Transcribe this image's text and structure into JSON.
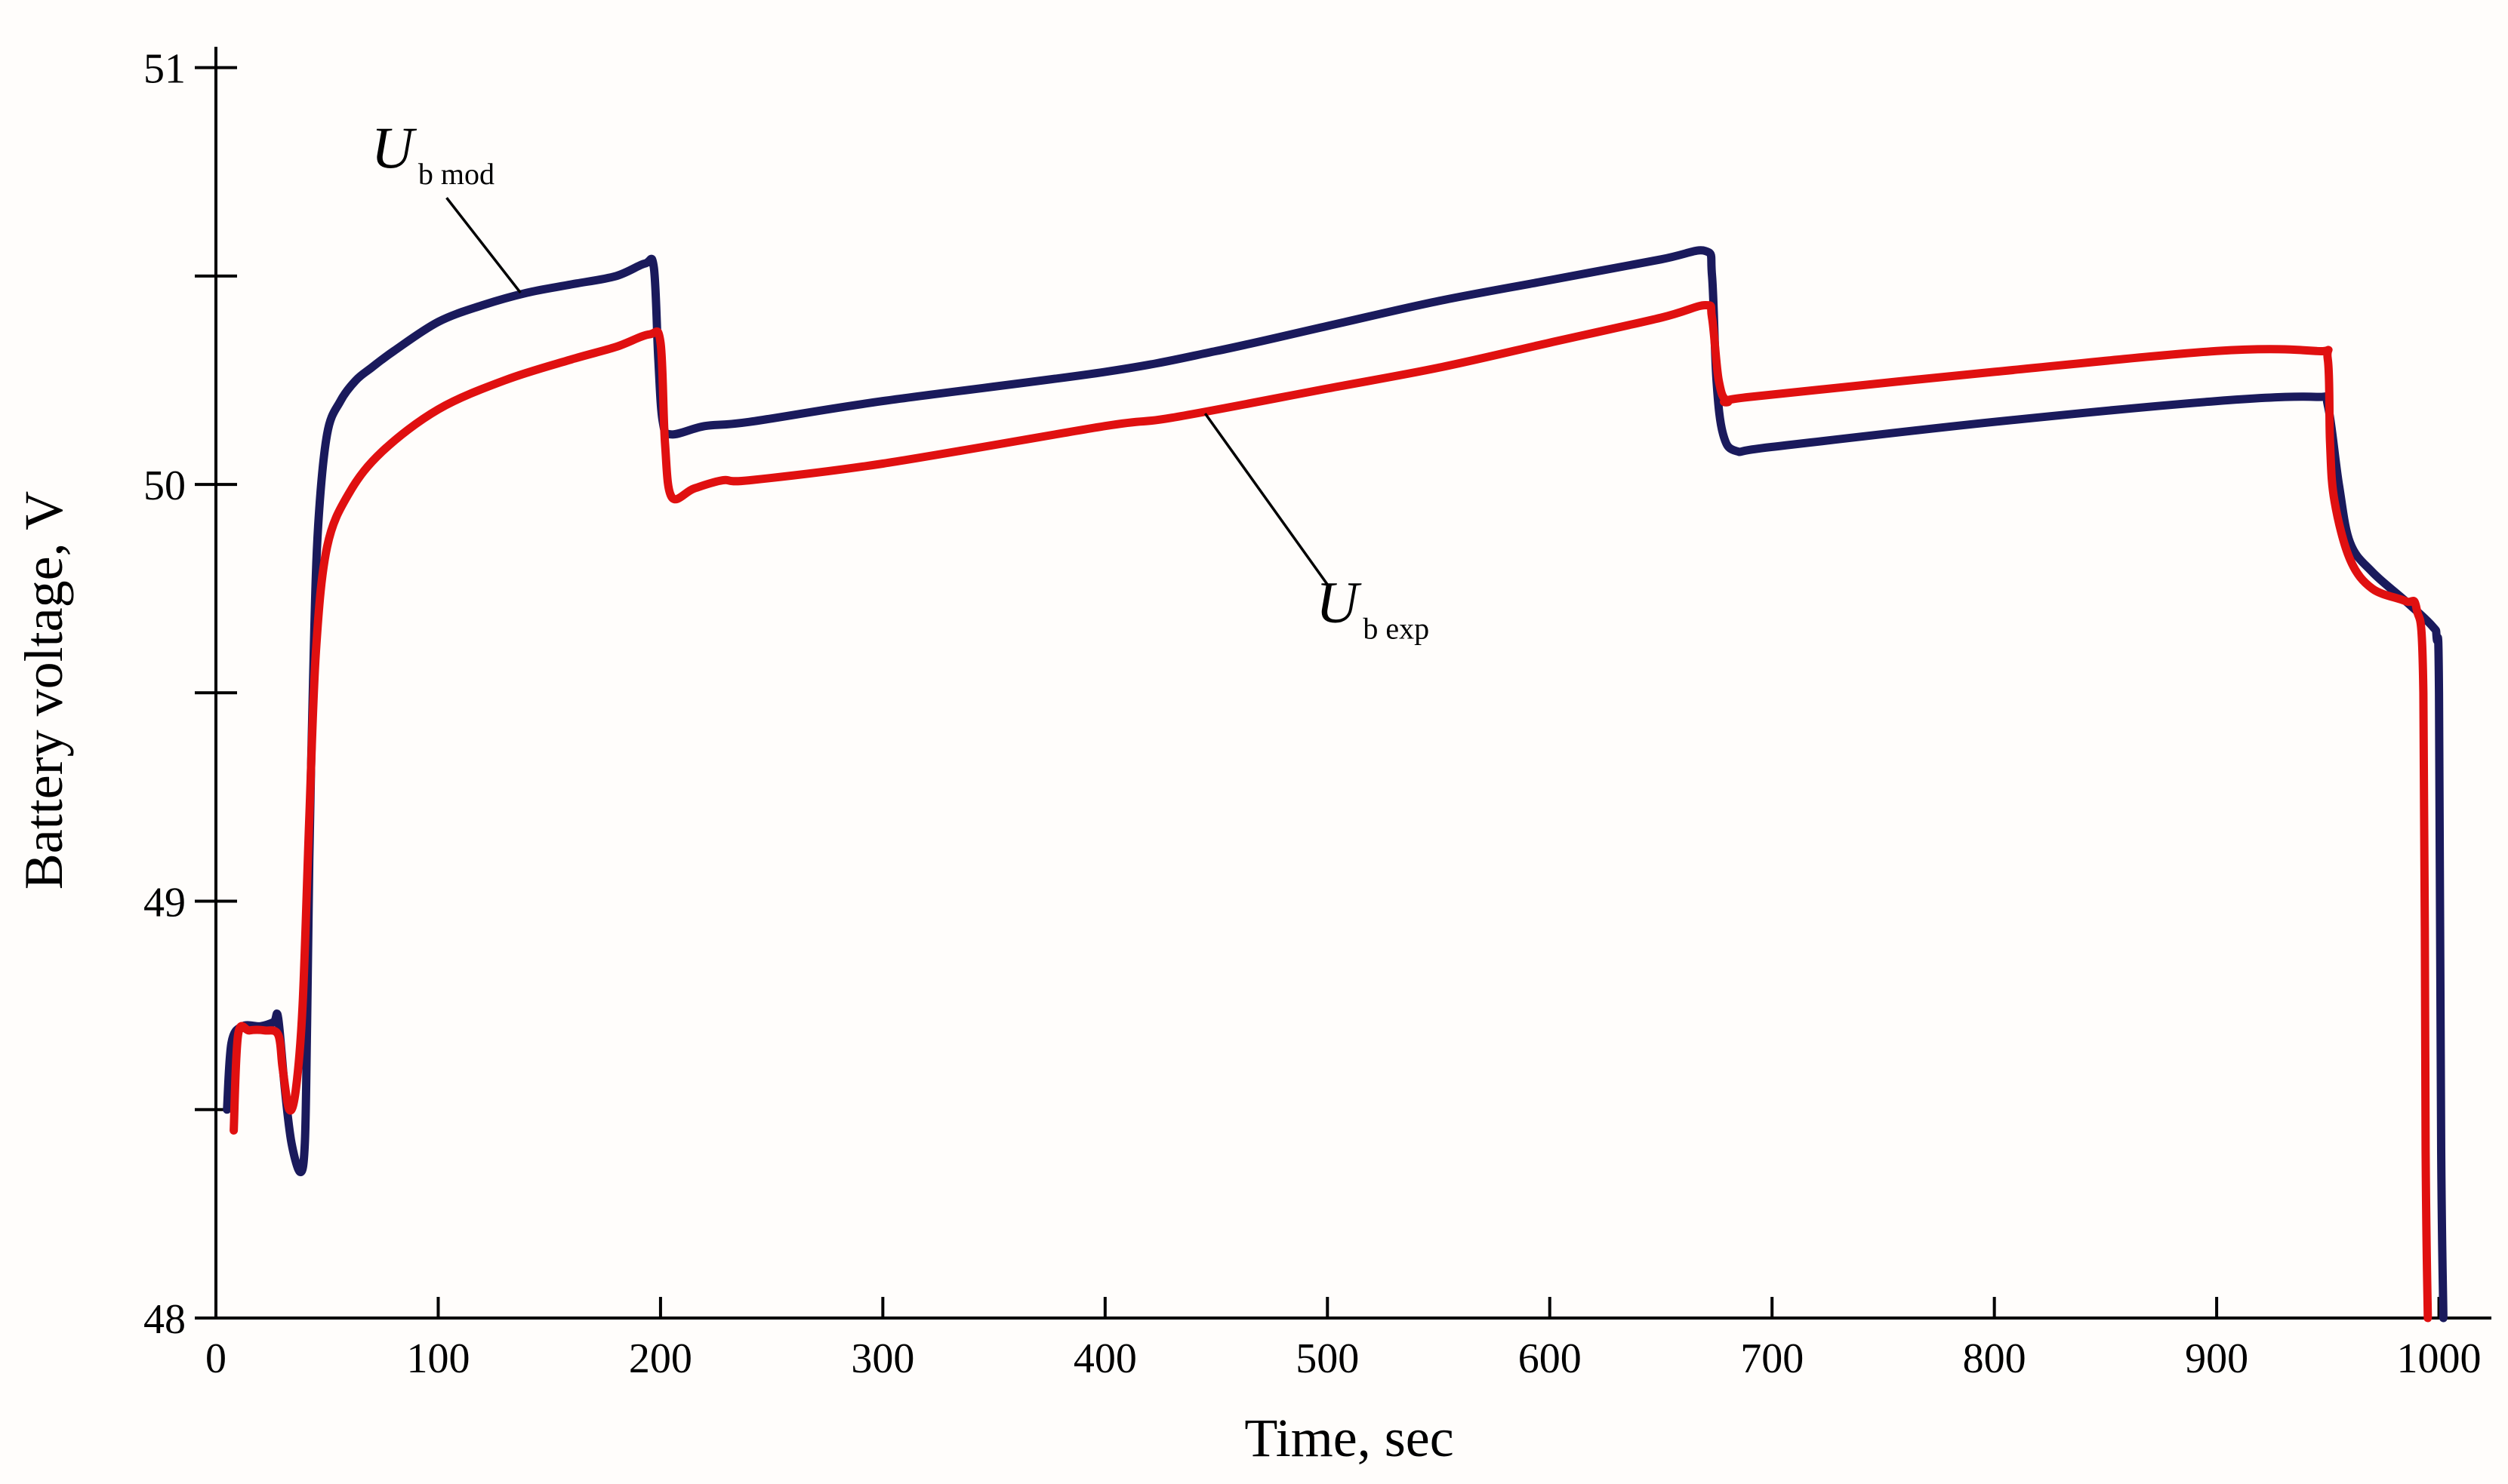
{
  "chart_data": {
    "type": "line",
    "title": "",
    "xlabel": "Time, sec",
    "ylabel": "Battery voltage, V",
    "xlim": [
      0,
      1010
    ],
    "ylim": [
      48,
      51.05
    ],
    "xticks": [
      0,
      100,
      200,
      300,
      400,
      500,
      600,
      700,
      800,
      900,
      1000
    ],
    "xtick_labels": [
      "0",
      "100",
      "200",
      "300",
      "400",
      "500",
      "600",
      "700",
      "800",
      "900",
      "1000"
    ],
    "yticks_major": [
      48,
      49,
      50,
      51
    ],
    "ytick_labels": [
      "48",
      "49",
      "50",
      "51"
    ],
    "yticks_minor": [
      48.5,
      49.5,
      50.5
    ],
    "grid": false,
    "series": [
      {
        "name": "U b mod",
        "label_main": "U",
        "label_sub": "b mod",
        "color": "#1a1a5c",
        "annotation_anchor": [
          137,
          50.46
        ],
        "label_anchor": [
          80,
          50.76
        ],
        "points": [
          [
            5,
            48.5
          ],
          [
            7,
            48.66
          ],
          [
            12,
            48.7
          ],
          [
            20,
            48.7
          ],
          [
            26,
            48.71
          ],
          [
            28,
            48.72
          ],
          [
            31,
            48.55
          ],
          [
            34,
            48.42
          ],
          [
            38,
            48.35
          ],
          [
            40,
            48.42
          ],
          [
            41,
            48.7
          ],
          [
            42,
            49.1
          ],
          [
            44,
            49.6
          ],
          [
            46,
            49.9
          ],
          [
            50,
            50.12
          ],
          [
            56,
            50.2
          ],
          [
            63,
            50.25
          ],
          [
            70,
            50.28
          ],
          [
            80,
            50.32
          ],
          [
            100,
            50.39
          ],
          [
            120,
            50.43
          ],
          [
            140,
            50.46
          ],
          [
            160,
            50.48
          ],
          [
            180,
            50.5
          ],
          [
            193,
            50.53
          ],
          [
            197,
            50.52
          ],
          [
            199,
            50.3
          ],
          [
            201,
            50.15
          ],
          [
            205,
            50.12
          ],
          [
            220,
            50.14
          ],
          [
            240,
            50.15
          ],
          [
            300,
            50.2
          ],
          [
            400,
            50.27
          ],
          [
            450,
            50.32
          ],
          [
            500,
            50.38
          ],
          [
            550,
            50.44
          ],
          [
            600,
            50.49
          ],
          [
            650,
            50.54
          ],
          [
            670,
            50.56
          ],
          [
            673,
            50.5
          ],
          [
            675,
            50.25
          ],
          [
            678,
            50.12
          ],
          [
            684,
            50.08
          ],
          [
            700,
            50.09
          ],
          [
            800,
            50.15
          ],
          [
            900,
            50.2
          ],
          [
            945,
            50.21
          ],
          [
            950,
            50.19
          ],
          [
            955,
            50.0
          ],
          [
            960,
            49.86
          ],
          [
            970,
            49.79
          ],
          [
            985,
            49.72
          ],
          [
            997,
            49.66
          ],
          [
            999,
            49.63
          ],
          [
            1000,
            49.5
          ],
          [
            1001,
            48.4
          ],
          [
            1002,
            48.0
          ]
        ]
      },
      {
        "name": "U b exp",
        "label_main": "U",
        "label_sub": "b exp",
        "color": "#e01010",
        "annotation_anchor": [
          445,
          50.17
        ],
        "label_anchor": [
          505,
          49.67
        ],
        "points": [
          [
            8,
            48.45
          ],
          [
            10,
            48.68
          ],
          [
            15,
            48.69
          ],
          [
            22,
            48.69
          ],
          [
            28,
            48.68
          ],
          [
            30,
            48.6
          ],
          [
            33,
            48.5
          ],
          [
            36,
            48.55
          ],
          [
            39,
            48.75
          ],
          [
            42,
            49.2
          ],
          [
            45,
            49.6
          ],
          [
            50,
            49.85
          ],
          [
            60,
            49.98
          ],
          [
            75,
            50.08
          ],
          [
            100,
            50.18
          ],
          [
            130,
            50.25
          ],
          [
            160,
            50.3
          ],
          [
            180,
            50.33
          ],
          [
            195,
            50.36
          ],
          [
            200,
            50.34
          ],
          [
            202,
            50.1
          ],
          [
            205,
            49.97
          ],
          [
            215,
            49.99
          ],
          [
            228,
            50.01
          ],
          [
            240,
            50.01
          ],
          [
            300,
            50.05
          ],
          [
            400,
            50.14
          ],
          [
            430,
            50.16
          ],
          [
            500,
            50.23
          ],
          [
            550,
            50.28
          ],
          [
            600,
            50.34
          ],
          [
            650,
            50.4
          ],
          [
            670,
            50.43
          ],
          [
            673,
            50.4
          ],
          [
            676,
            50.25
          ],
          [
            680,
            50.2
          ],
          [
            690,
            50.21
          ],
          [
            800,
            50.27
          ],
          [
            900,
            50.32
          ],
          [
            945,
            50.32
          ],
          [
            950,
            50.3
          ],
          [
            951,
            50.1
          ],
          [
            953,
            49.96
          ],
          [
            960,
            49.82
          ],
          [
            970,
            49.75
          ],
          [
            985,
            49.72
          ],
          [
            990,
            49.7
          ],
          [
            993,
            49.5
          ],
          [
            994,
            48.4
          ],
          [
            995,
            48.0
          ]
        ]
      }
    ]
  }
}
